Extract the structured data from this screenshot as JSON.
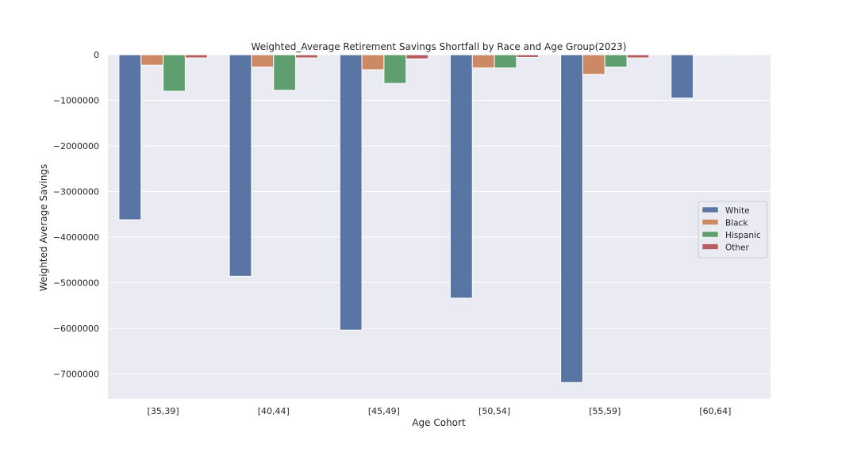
{
  "chart_data": {
    "type": "bar",
    "title": "Weighted_Average Retirement Savings Shortfall by Race and Age Group(2023)",
    "xlabel": "Age Cohort",
    "ylabel": "Weighted Average Savings",
    "categories": [
      "[35,39]",
      "[40,44]",
      "[45,49]",
      "[50,54]",
      "[55,59]",
      "[60,64]"
    ],
    "series": [
      {
        "name": "White",
        "color": "#5875a4",
        "values": [
          -3620000,
          -4860000,
          -6040000,
          -5340000,
          -7190000,
          -950000
        ]
      },
      {
        "name": "Black",
        "color": "#cc8963",
        "values": [
          -230000,
          -270000,
          -330000,
          -290000,
          -430000,
          -10000
        ]
      },
      {
        "name": "Hispanic",
        "color": "#5f9e6e",
        "values": [
          -800000,
          -780000,
          -630000,
          -290000,
          -270000,
          -20000
        ]
      },
      {
        "name": "Other",
        "color": "#b55d60",
        "values": [
          -70000,
          -70000,
          -90000,
          -60000,
          -70000,
          -5000
        ]
      }
    ],
    "ylim": [
      -7550000,
      0
    ],
    "yticks": [
      0,
      -1000000,
      -2000000,
      -3000000,
      -4000000,
      -5000000,
      -6000000,
      -7000000
    ],
    "ytick_labels": [
      "0",
      "−1000000",
      "−2000000",
      "−3000000",
      "−4000000",
      "−5000000",
      "−6000000",
      "−7000000"
    ],
    "grid": true,
    "legend_position": "center-right",
    "style": {
      "axes_background": "#eaeaf2",
      "grid_color": "#ffffff"
    }
  }
}
